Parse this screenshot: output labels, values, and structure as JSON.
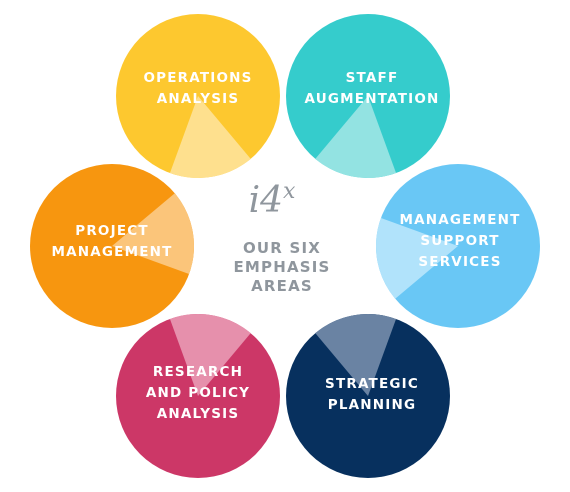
{
  "center": {
    "logo_main": "i4",
    "logo_sup": "x",
    "lines": [
      "OUR SIX",
      "EMPHASIS",
      "AREAS"
    ]
  },
  "areas": [
    {
      "id": "operations",
      "lines": [
        "OPERATIONS",
        "ANALYSIS"
      ],
      "color": "#FDC82F",
      "wedge_color": "#FEE08E"
    },
    {
      "id": "staff",
      "lines": [
        "STAFF",
        "AUGMENTATION"
      ],
      "color": "#35CCCC",
      "wedge_color": "#93E3E2"
    },
    {
      "id": "management-support",
      "lines": [
        "MANAGEMENT",
        "SUPPORT",
        "SERVICES"
      ],
      "color": "#69C7F5",
      "wedge_color": "#B1E3FB"
    },
    {
      "id": "strategic",
      "lines": [
        "STRATEGIC",
        "PLANNING"
      ],
      "color": "#07305E",
      "wedge_color": "#6A83A3"
    },
    {
      "id": "research",
      "lines": [
        "RESEARCH",
        "AND POLICY",
        "ANALYSIS"
      ],
      "color": "#CC3767",
      "wedge_color": "#E690AC"
    },
    {
      "id": "project",
      "lines": [
        "PROJECT",
        "MANAGEMENT"
      ],
      "color": "#F7960F",
      "wedge_color": "#FBC57A"
    }
  ]
}
